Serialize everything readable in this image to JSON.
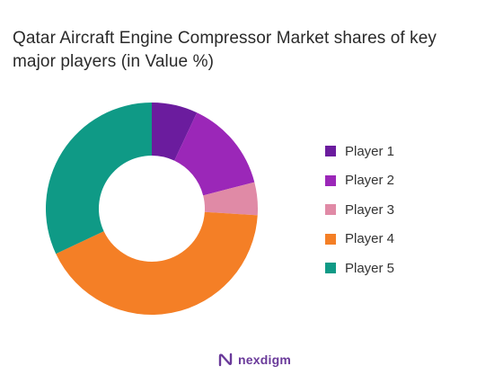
{
  "chart_data": {
    "type": "pie",
    "donut": true,
    "title": "Qatar Aircraft Engine Compressor Market shares of key major players (in Value %)",
    "categories": [
      "Player 1",
      "Player 2",
      "Player 3",
      "Player 4",
      "Player 5"
    ],
    "values": [
      7,
      14,
      5,
      42,
      32
    ],
    "unit": "%",
    "colors": [
      "#6b1c9e",
      "#9b27b8",
      "#e08aa6",
      "#f47f26",
      "#0f9a86"
    ],
    "legend": "right"
  },
  "brand": {
    "name": "nexdigm",
    "color": "#6a3a9a"
  }
}
